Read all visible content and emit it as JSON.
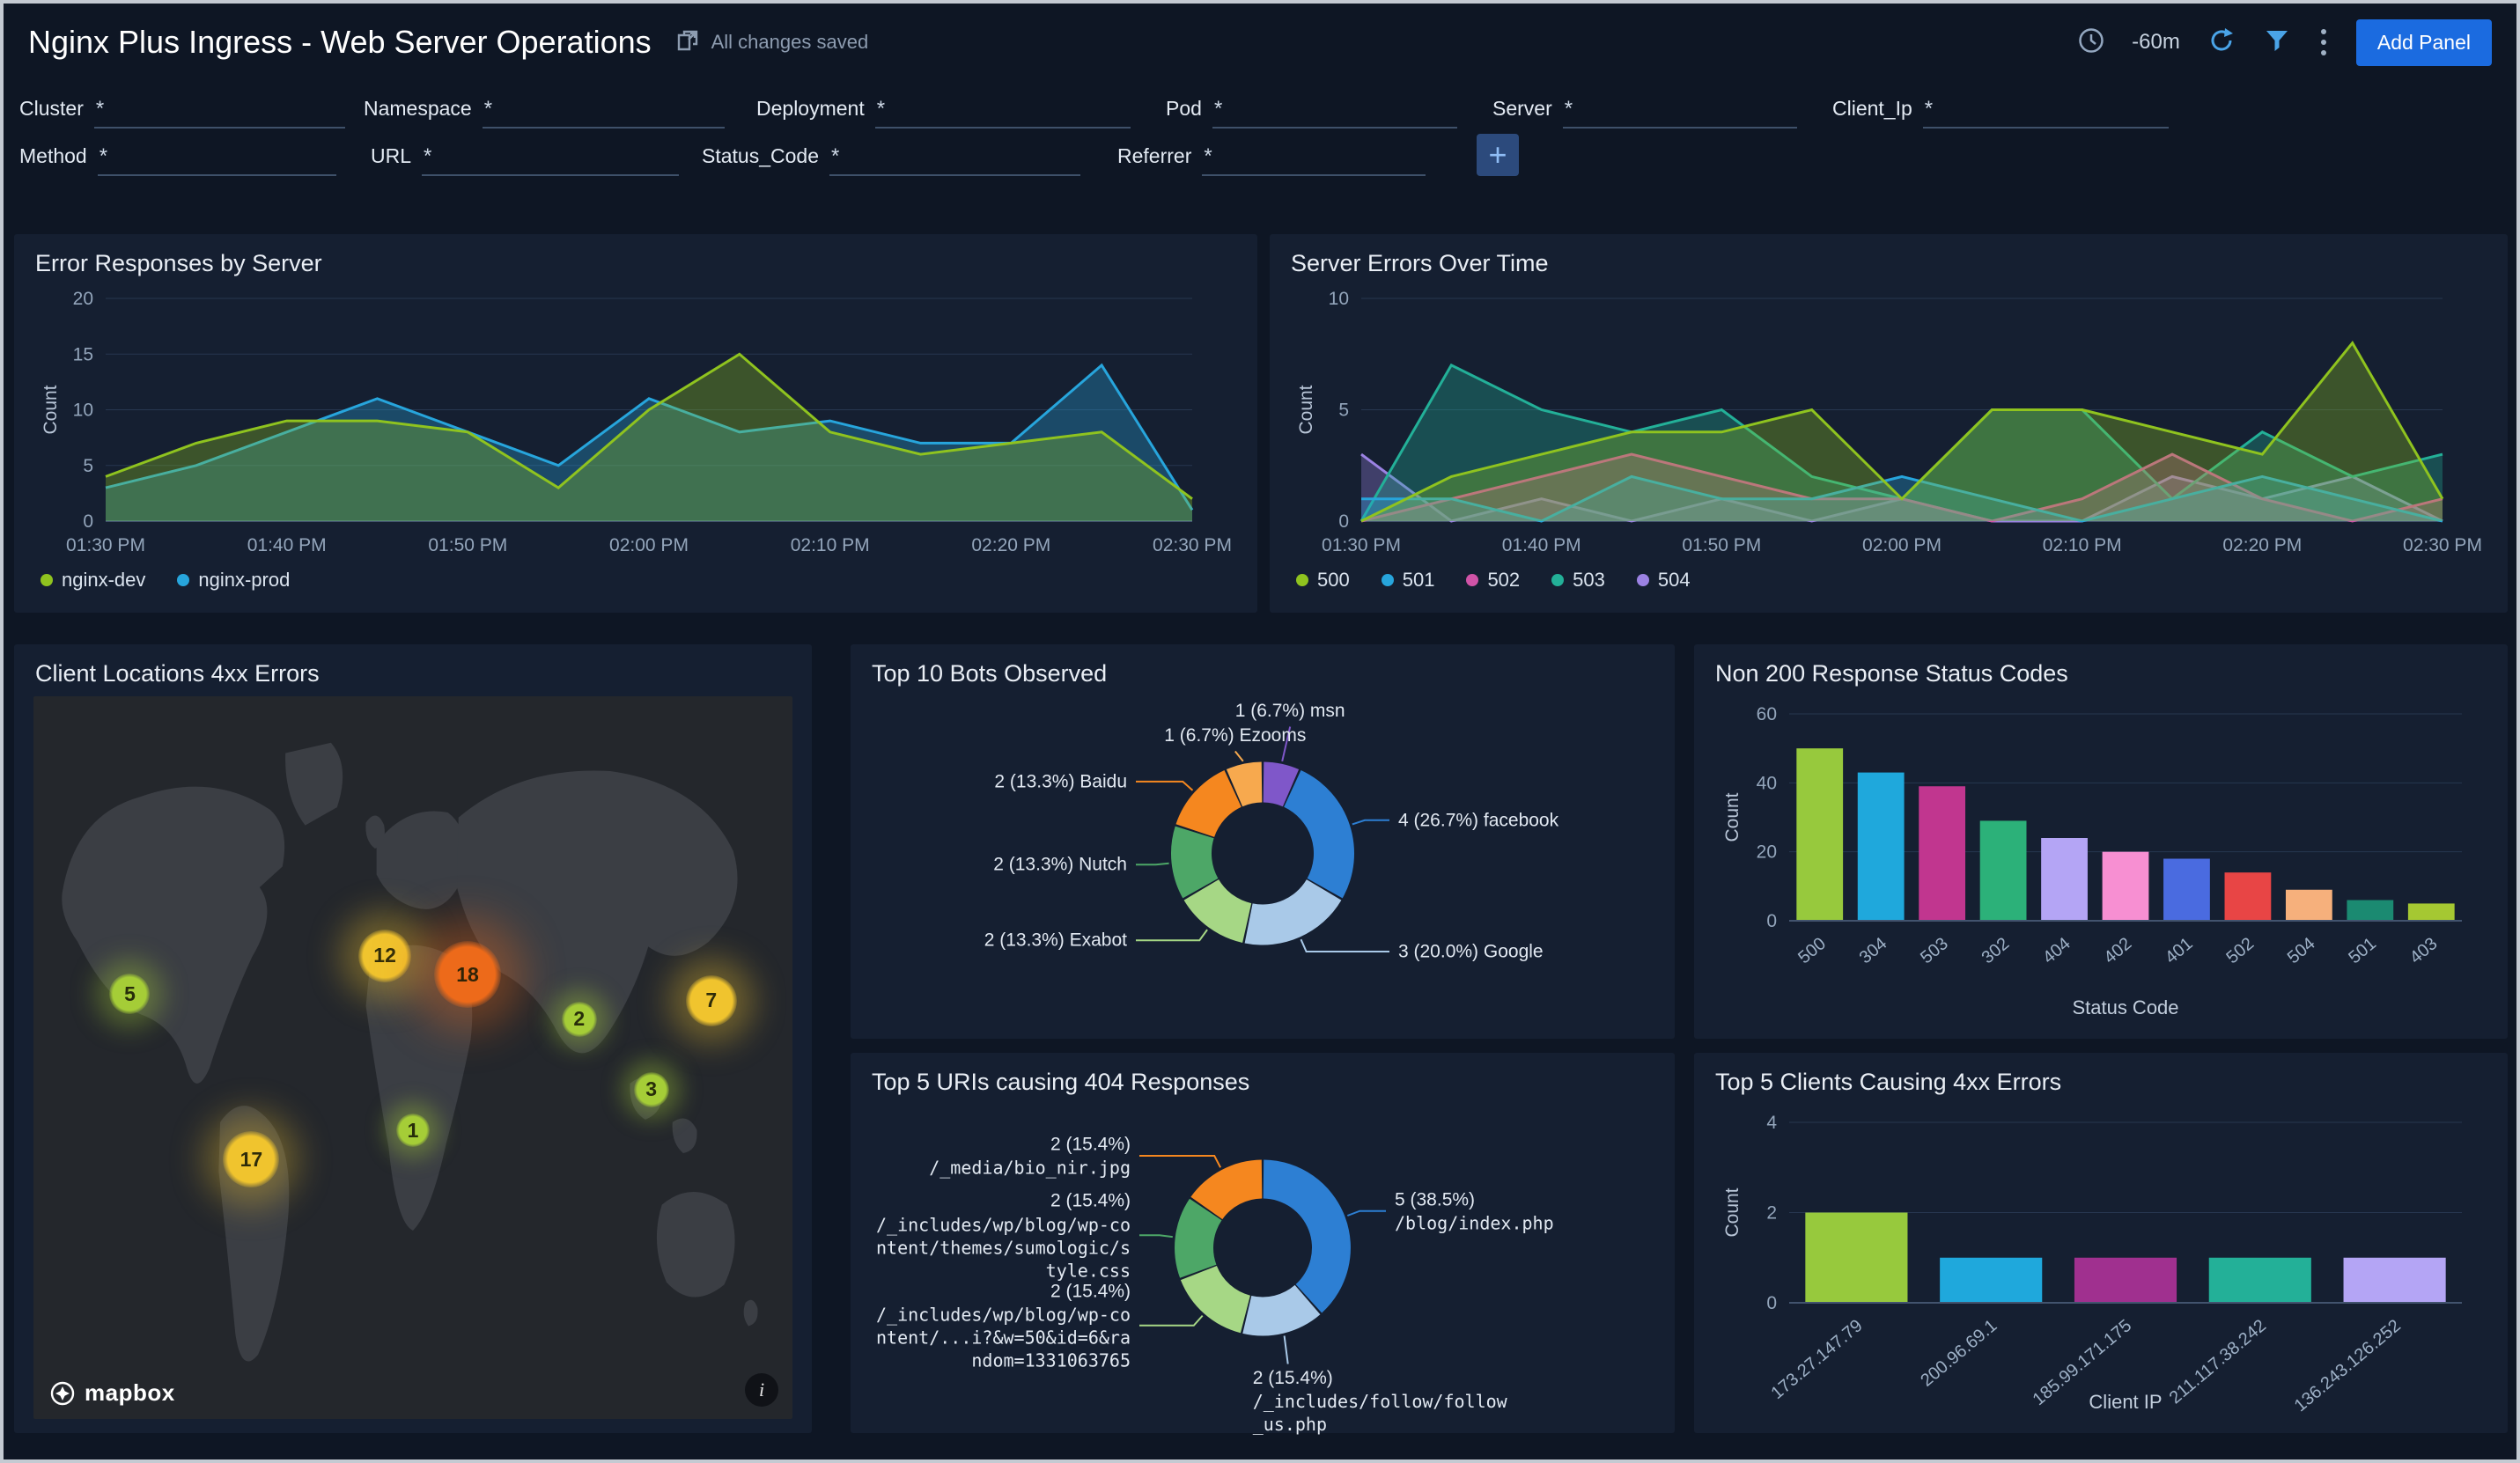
{
  "header": {
    "title": "Nginx Plus Ingress - Web Server Operations",
    "saved_status": "All changes saved",
    "time_range": "-60m",
    "add_panel": "Add Panel"
  },
  "filters": [
    {
      "label": "Cluster",
      "value": "*"
    },
    {
      "label": "Namespace",
      "value": "*"
    },
    {
      "label": "Deployment",
      "value": "*"
    },
    {
      "label": "Pod",
      "value": "*"
    },
    {
      "label": "Server",
      "value": "*"
    },
    {
      "label": "Client_Ip",
      "value": "*"
    },
    {
      "label": "Method",
      "value": "*"
    },
    {
      "label": "URL",
      "value": "*"
    },
    {
      "label": "Status_Code",
      "value": "*"
    },
    {
      "label": "Referrer",
      "value": "*"
    }
  ],
  "map_panel": {
    "title": "Client Locations 4xx Errors",
    "attribution": "mapbox",
    "bubbles": [
      {
        "value": 5,
        "x": 12.7,
        "y": 41.2,
        "size": 46,
        "color": "#a5cd37"
      },
      {
        "value": 12,
        "x": 46.3,
        "y": 35.9,
        "size": 60,
        "color": "#f0c42e"
      },
      {
        "value": 18,
        "x": 57.2,
        "y": 38.5,
        "size": 76,
        "color": "#ed6a1a"
      },
      {
        "value": 2,
        "x": 71.9,
        "y": 44.7,
        "size": 40,
        "color": "#a5cd37"
      },
      {
        "value": 7,
        "x": 89.3,
        "y": 42.1,
        "size": 58,
        "color": "#f0c42e"
      },
      {
        "value": 3,
        "x": 81.4,
        "y": 54.4,
        "size": 40,
        "color": "#a5cd37"
      },
      {
        "value": 1,
        "x": 50.0,
        "y": 60.1,
        "size": 38,
        "color": "#a5cd37"
      },
      {
        "value": 17,
        "x": 28.7,
        "y": 64.1,
        "size": 64,
        "color": "#f0c42e"
      }
    ]
  },
  "chart_data": [
    {
      "type": "area",
      "title": "Error Responses by Server",
      "ylabel": "Count",
      "ylim": [
        0,
        20
      ],
      "yticks": [
        0,
        5,
        10,
        15,
        20
      ],
      "x_ticks": [
        "01:30 PM",
        "01:40 PM",
        "01:50 PM",
        "02:00 PM",
        "02:10 PM",
        "02:20 PM",
        "02:30 PM"
      ],
      "legend_position": "bottom",
      "series": [
        {
          "name": "nginx-dev",
          "color": "#8fc31f",
          "values": [
            4,
            7,
            9,
            9,
            8,
            3,
            10,
            15,
            8,
            6,
            7,
            8,
            2
          ]
        },
        {
          "name": "nginx-prod",
          "color": "#27a5dc",
          "values": [
            3,
            5,
            8,
            11,
            8,
            5,
            11,
            8,
            9,
            7,
            7,
            14,
            1
          ]
        }
      ]
    },
    {
      "type": "area",
      "title": "Server Errors Over Time",
      "ylabel": "Count",
      "ylim": [
        0,
        10
      ],
      "yticks": [
        0,
        5,
        10
      ],
      "x_ticks": [
        "01:30 PM",
        "01:40 PM",
        "01:50 PM",
        "02:00 PM",
        "02:10 PM",
        "02:20 PM",
        "02:30 PM"
      ],
      "legend_position": "bottom",
      "series": [
        {
          "name": "500",
          "color": "#8fc31f",
          "values": [
            0,
            2,
            3,
            4,
            4,
            5,
            1,
            5,
            5,
            4,
            3,
            8,
            1
          ]
        },
        {
          "name": "501",
          "color": "#27a5dc",
          "values": [
            1,
            1,
            0,
            2,
            1,
            1,
            2,
            1,
            0,
            1,
            2,
            1,
            0
          ]
        },
        {
          "name": "502",
          "color": "#d053a7",
          "values": [
            0,
            1,
            2,
            3,
            2,
            1,
            1,
            0,
            1,
            3,
            1,
            0,
            1
          ]
        },
        {
          "name": "503",
          "color": "#23b098",
          "values": [
            0,
            7,
            5,
            4,
            5,
            2,
            1,
            5,
            5,
            1,
            4,
            2,
            3
          ]
        },
        {
          "name": "504",
          "color": "#9b82e3",
          "values": [
            3,
            0,
            1,
            0,
            1,
            0,
            1,
            0,
            0,
            2,
            1,
            2,
            0
          ]
        }
      ]
    },
    {
      "type": "pie",
      "title": "Top 10 Bots Observed",
      "donut": true,
      "slices": [
        {
          "name": "msn",
          "value": 1,
          "pct": "6.7",
          "color": "#7f57c9"
        },
        {
          "name": "facebook",
          "value": 4,
          "pct": "26.7",
          "color": "#2d7fd3"
        },
        {
          "name": "Google",
          "value": 3,
          "pct": "20.0",
          "color": "#a9c9e8"
        },
        {
          "name": "Exabot",
          "value": 2,
          "pct": "13.3",
          "color": "#a6d785"
        },
        {
          "name": "Nutch",
          "value": 2,
          "pct": "13.3",
          "color": "#4da767"
        },
        {
          "name": "Baidu",
          "value": 2,
          "pct": "13.3",
          "color": "#f5871f"
        },
        {
          "name": "Ezooms",
          "value": 1,
          "pct": "6.7",
          "color": "#f7a94e"
        }
      ]
    },
    {
      "type": "bar",
      "title": "Non 200 Response Status Codes",
      "ylabel": "Count",
      "xlabel": "Status Code",
      "ylim": [
        0,
        60
      ],
      "yticks": [
        0,
        20,
        40,
        60
      ],
      "categories": [
        "500",
        "304",
        "503",
        "302",
        "404",
        "402",
        "401",
        "502",
        "504",
        "501",
        "403"
      ],
      "values": [
        50,
        43,
        39,
        29,
        24,
        20,
        18,
        14,
        9,
        6,
        5
      ],
      "colors": [
        "#97c93d",
        "#1fa8dc",
        "#c1368f",
        "#2cb179",
        "#b4a5f5",
        "#f78fd2",
        "#4a6be0",
        "#e84545",
        "#f6b07c",
        "#1b8a71",
        "#a5c832"
      ]
    },
    {
      "type": "pie",
      "title": "Top 5 URIs causing 404 Responses",
      "donut": true,
      "slices": [
        {
          "name": "blog-index",
          "path": "/blog/index.php",
          "value": 5,
          "pct": "38.5",
          "color": "#2d7fd3"
        },
        {
          "name": "follow-us",
          "path": "/_includes/follow/follow_us.php",
          "value": 2,
          "pct": "15.4",
          "color": "#a9c9e8"
        },
        {
          "name": "wp-content-random",
          "path": "/_includes/wp/blog/wp-content/...i?&w=50&id=6&random=1331063765",
          "value": 2,
          "pct": "15.4",
          "color": "#a6d785"
        },
        {
          "name": "style-css",
          "path": "/_includes/wp/blog/wp-content/themes/sumologic/style.css",
          "value": 2,
          "pct": "15.4",
          "color": "#4da767"
        },
        {
          "name": "bio-nir",
          "path": "/_media/bio_nir.jpg",
          "value": 2,
          "pct": "15.4",
          "color": "#f5871f"
        }
      ]
    },
    {
      "type": "bar",
      "title": "Top 5 Clients Causing 4xx Errors",
      "ylabel": "Count",
      "xlabel": "Client IP",
      "ylim": [
        0,
        4
      ],
      "yticks": [
        0,
        2,
        4
      ],
      "categories": [
        "173.27.147.79",
        "200.96.69.1",
        "185.99.171.175",
        "211.117.38.242",
        "136.243.126.252"
      ],
      "values": [
        2,
        1,
        1,
        1,
        1
      ],
      "colors": [
        "#97c93d",
        "#1fa8dc",
        "#a0308f",
        "#23b098",
        "#b4a5f5"
      ]
    }
  ]
}
